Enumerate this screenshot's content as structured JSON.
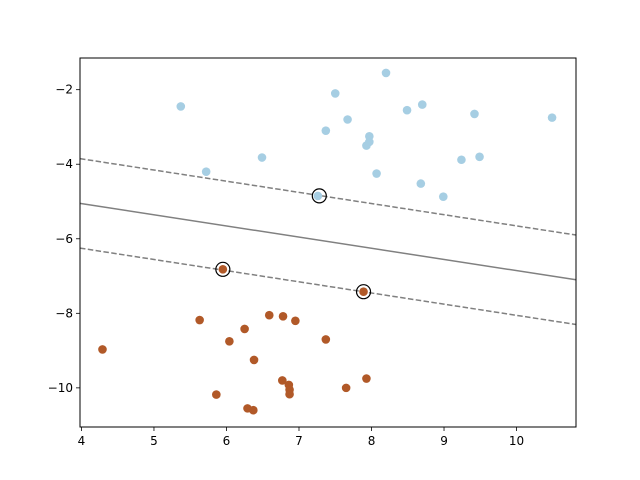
{
  "chart_data": {
    "type": "scatter",
    "title": "",
    "xlabel": "",
    "ylabel": "",
    "xlim": [
      3.98,
      10.82
    ],
    "ylim": [
      -11.05,
      -1.15
    ],
    "grid": false,
    "legend": "none",
    "x_ticks": [
      {
        "value": 4,
        "label": "4"
      },
      {
        "value": 5,
        "label": "5"
      },
      {
        "value": 6,
        "label": "6"
      },
      {
        "value": 7,
        "label": "7"
      },
      {
        "value": 8,
        "label": "8"
      },
      {
        "value": 9,
        "label": "9"
      },
      {
        "value": 10,
        "label": "10"
      }
    ],
    "y_ticks": [
      {
        "value": -2,
        "label": "−2"
      },
      {
        "value": -4,
        "label": "−4"
      },
      {
        "value": -6,
        "label": "−6"
      },
      {
        "value": -8,
        "label": "−8"
      },
      {
        "value": -10,
        "label": "−10"
      }
    ],
    "series": [
      {
        "color": "#a6cee3",
        "points": [
          [
            8.2,
            -1.55
          ],
          [
            7.5,
            -2.1
          ],
          [
            5.37,
            -2.45
          ],
          [
            8.49,
            -2.55
          ],
          [
            8.7,
            -2.4
          ],
          [
            9.42,
            -2.65
          ],
          [
            10.49,
            -2.75
          ],
          [
            7.67,
            -2.8
          ],
          [
            7.37,
            -3.1
          ],
          [
            7.97,
            -3.25
          ],
          [
            7.97,
            -3.4
          ],
          [
            7.93,
            -3.5
          ],
          [
            6.49,
            -3.82
          ],
          [
            9.49,
            -3.8
          ],
          [
            9.24,
            -3.88
          ],
          [
            5.72,
            -4.2
          ],
          [
            8.07,
            -4.25
          ],
          [
            8.68,
            -4.52
          ],
          [
            8.99,
            -4.87
          ],
          [
            7.26,
            -4.85
          ]
        ]
      },
      {
        "color": "#b15928",
        "points": [
          [
            5.95,
            -6.82
          ],
          [
            7.89,
            -7.42
          ],
          [
            5.63,
            -8.18
          ],
          [
            6.59,
            -8.05
          ],
          [
            6.78,
            -8.08
          ],
          [
            6.95,
            -8.2
          ],
          [
            6.25,
            -8.42
          ],
          [
            7.37,
            -8.7
          ],
          [
            6.04,
            -8.75
          ],
          [
            4.29,
            -8.97
          ],
          [
            6.38,
            -9.25
          ],
          [
            7.93,
            -9.75
          ],
          [
            6.77,
            -9.8
          ],
          [
            6.86,
            -9.92
          ],
          [
            7.65,
            -10.0
          ],
          [
            6.87,
            -10.05
          ],
          [
            6.87,
            -10.17
          ],
          [
            5.86,
            -10.18
          ],
          [
            6.29,
            -10.55
          ],
          [
            6.37,
            -10.6
          ]
        ]
      }
    ],
    "decision_lines": [
      {
        "style": "dashed",
        "color": "#808080",
        "points": [
          [
            3.98,
            -3.85
          ],
          [
            10.82,
            -5.9
          ]
        ]
      },
      {
        "style": "solid",
        "color": "#808080",
        "points": [
          [
            3.98,
            -5.05
          ],
          [
            10.82,
            -7.1
          ]
        ]
      },
      {
        "style": "dashed",
        "color": "#808080",
        "points": [
          [
            3.98,
            -6.25
          ],
          [
            10.82,
            -8.3
          ]
        ]
      }
    ],
    "support_vectors": [
      [
        7.28,
        -4.85
      ],
      [
        5.95,
        -6.82
      ],
      [
        7.89,
        -7.42
      ]
    ]
  }
}
